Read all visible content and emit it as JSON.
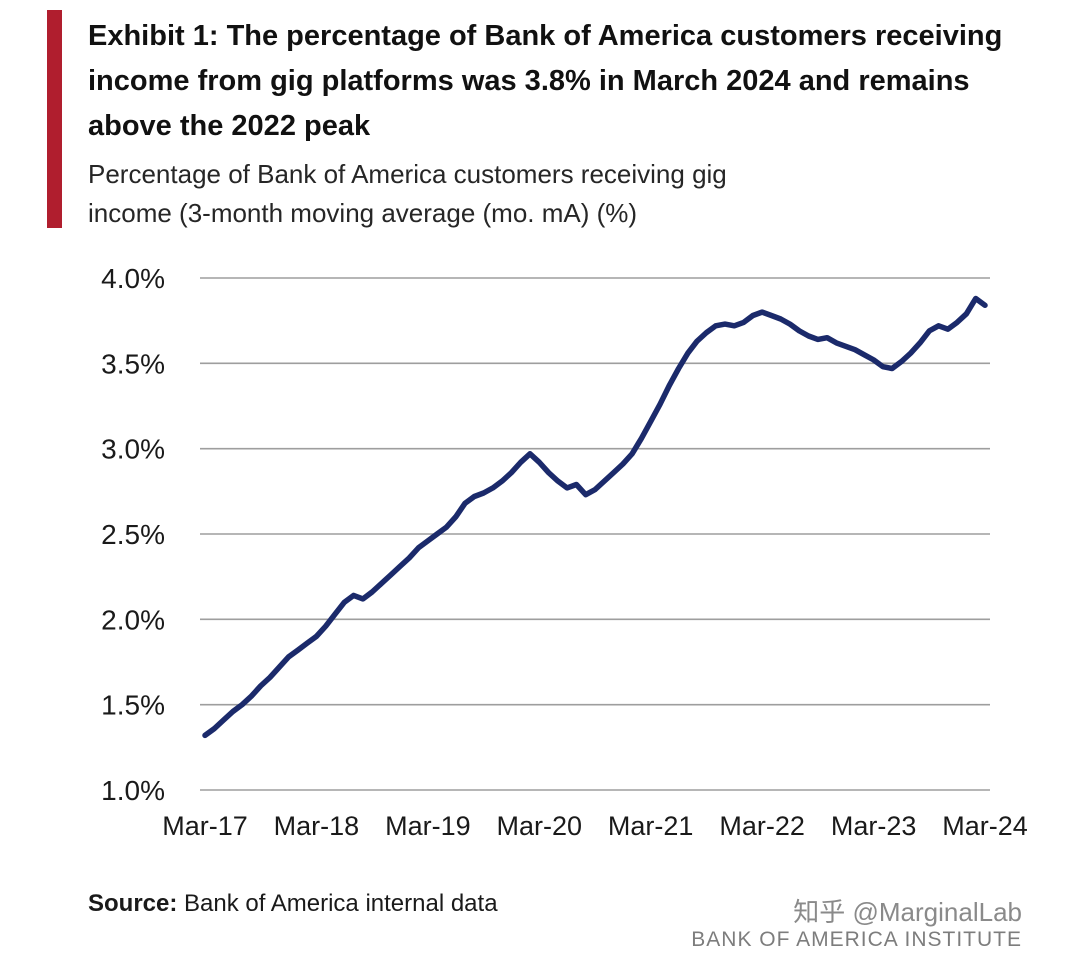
{
  "header": {
    "exhibit_title": "Exhibit 1: The percentage of Bank of America customers receiving income from gig platforms was 3.8% in March 2024 and remains above the 2022 peak",
    "subtitle": "Percentage of Bank of America customers receiving gig income (3-month moving average (mo. mA) (%)"
  },
  "footer": {
    "source_label": "Source:",
    "source_text": "Bank of America internal data",
    "watermark": "知乎 @MarginalLab",
    "institute": "BANK OF AMERICA INSTITUTE"
  },
  "colors": {
    "accent_red": "#b01e2e",
    "line_navy": "#1b2a6b",
    "grid_gray": "#9e9e9e",
    "tick_text": "#1a1a1a"
  },
  "chart_data": {
    "type": "line",
    "title": "Percentage of Bank of America customers receiving gig income (3-month moving average) (%)",
    "xlabel": "",
    "ylabel": "%",
    "frequency": "monthly",
    "x_start": "Mar-17",
    "x_end": "Mar-24",
    "ylim": [
      1.0,
      4.0
    ],
    "grid": true,
    "legend": "none",
    "line_color": "#1b2a6b",
    "grid_color": "#9e9e9e",
    "yticks": [
      {
        "value": 4.0,
        "label": "4.0%"
      },
      {
        "value": 3.5,
        "label": "3.5%"
      },
      {
        "value": 3.0,
        "label": "3.0%"
      },
      {
        "value": 2.5,
        "label": "2.5%"
      },
      {
        "value": 2.0,
        "label": "2.0%"
      },
      {
        "value": 1.5,
        "label": "1.5%"
      },
      {
        "value": 1.0,
        "label": "1.0%"
      }
    ],
    "xticks": [
      {
        "index": 0,
        "label": "Mar-17"
      },
      {
        "index": 12,
        "label": "Mar-18"
      },
      {
        "index": 24,
        "label": "Mar-19"
      },
      {
        "index": 36,
        "label": "Mar-20"
      },
      {
        "index": 48,
        "label": "Mar-21"
      },
      {
        "index": 60,
        "label": "Mar-22"
      },
      {
        "index": 72,
        "label": "Mar-23"
      },
      {
        "index": 84,
        "label": "Mar-24"
      }
    ],
    "values": [
      1.32,
      1.36,
      1.41,
      1.46,
      1.5,
      1.55,
      1.61,
      1.66,
      1.72,
      1.78,
      1.82,
      1.86,
      1.9,
      1.96,
      2.03,
      2.1,
      2.14,
      2.12,
      2.16,
      2.21,
      2.26,
      2.31,
      2.36,
      2.42,
      2.46,
      2.5,
      2.54,
      2.6,
      2.68,
      2.72,
      2.74,
      2.77,
      2.81,
      2.86,
      2.92,
      2.97,
      2.92,
      2.86,
      2.81,
      2.77,
      2.79,
      2.73,
      2.76,
      2.81,
      2.86,
      2.91,
      2.97,
      3.06,
      3.16,
      3.26,
      3.37,
      3.47,
      3.56,
      3.63,
      3.68,
      3.72,
      3.73,
      3.72,
      3.74,
      3.78,
      3.8,
      3.78,
      3.76,
      3.73,
      3.69,
      3.66,
      3.64,
      3.65,
      3.62,
      3.6,
      3.58,
      3.55,
      3.52,
      3.48,
      3.47,
      3.51,
      3.56,
      3.62,
      3.69,
      3.72,
      3.7,
      3.74,
      3.79,
      3.88,
      3.84
    ]
  }
}
